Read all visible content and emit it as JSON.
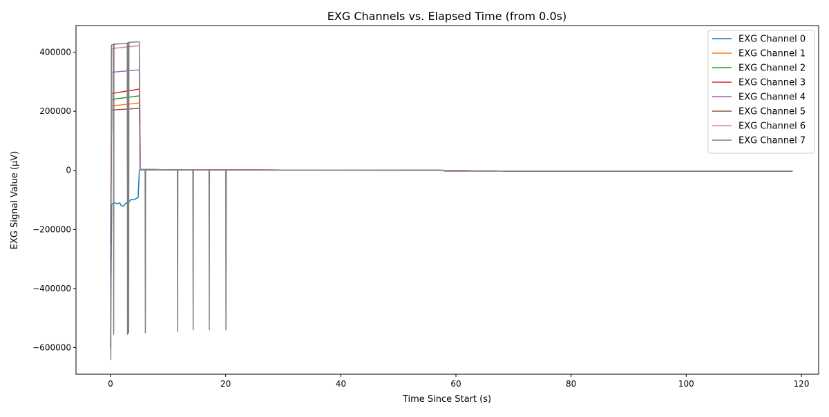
{
  "chart_data": {
    "type": "line",
    "title": "EXG Channels vs. Elapsed Time (from 0.0s)",
    "xlabel": "Time Since Start (s)",
    "ylabel": "EXG Signal Value (µV)",
    "xlim": [
      -6,
      123
    ],
    "ylim": [
      -690000,
      490000
    ],
    "xticks": [
      0,
      20,
      40,
      60,
      80,
      100,
      120
    ],
    "yticks": [
      -600000,
      -400000,
      -200000,
      0,
      200000,
      400000
    ],
    "ytick_labels": [
      "−600000",
      "−400000",
      "−200000",
      "0",
      "200000",
      "400000"
    ],
    "grid": false,
    "legend_position": "top-right",
    "series": [
      {
        "name": "EXG Channel 0",
        "color": "#1f77b4",
        "x": [
          0,
          0.2,
          0.4,
          0.8,
          1.2,
          1.6,
          1.8,
          2.2,
          2.6,
          3.0,
          3.3,
          3.6,
          4.0,
          4.4,
          4.8,
          5.0,
          5.2,
          6,
          10,
          20,
          30,
          40,
          50,
          58,
          70,
          90,
          118.5
        ],
        "y": [
          -600000,
          -115000,
          -112000,
          -110000,
          -113000,
          -110000,
          -118000,
          -122000,
          -112000,
          -108000,
          -105000,
          -98000,
          -100000,
          -96000,
          -92000,
          0,
          2000,
          1000,
          1500,
          1200,
          1000,
          800,
          500,
          0,
          -3000,
          -3000,
          -3000
        ]
      },
      {
        "name": "EXG Channel 1",
        "color": "#ff7f0e",
        "x": [
          0,
          0.2,
          5.0,
          5.2,
          10,
          20,
          30,
          40,
          50,
          58,
          70,
          90,
          118.5
        ],
        "y": [
          -200000,
          218000,
          228000,
          3000,
          2000,
          1500,
          1200,
          1000,
          800,
          0,
          -3000,
          -3000,
          -3000
        ]
      },
      {
        "name": "EXG Channel 2",
        "color": "#2ca02c",
        "x": [
          0,
          0.2,
          5.0,
          5.2,
          10,
          20,
          30,
          40,
          50,
          58,
          70,
          90,
          118.5
        ],
        "y": [
          -250000,
          240000,
          252000,
          3000,
          2000,
          1500,
          1200,
          1000,
          800,
          0,
          -3000,
          -3000,
          -3000
        ]
      },
      {
        "name": "EXG Channel 3",
        "color": "#d62728",
        "x": [
          0,
          0.2,
          5.0,
          5.2,
          10,
          20,
          30,
          40,
          50,
          58,
          70,
          90,
          118.5
        ],
        "y": [
          -300000,
          260000,
          275000,
          3000,
          2000,
          1500,
          1200,
          1000,
          800,
          0,
          -3000,
          -3000,
          -3000
        ]
      },
      {
        "name": "EXG Channel 4",
        "color": "#9467bd",
        "x": [
          0,
          0.2,
          5.0,
          5.2,
          10,
          20,
          30,
          40,
          50,
          58,
          70,
          90,
          118.5
        ],
        "y": [
          -400000,
          332000,
          340000,
          3000,
          2000,
          1500,
          1200,
          1000,
          800,
          0,
          -3000,
          -3000,
          -3000
        ]
      },
      {
        "name": "EXG Channel 5",
        "color": "#8c564b",
        "x": [
          0,
          0.2,
          5.0,
          5.2,
          10,
          20,
          30,
          40,
          50,
          58,
          70,
          90,
          118.5
        ],
        "y": [
          -350000,
          204000,
          210000,
          3000,
          2000,
          1500,
          1200,
          1000,
          800,
          0,
          -3000,
          -3000,
          -3000
        ]
      },
      {
        "name": "EXG Channel 6",
        "color": "#e377c2",
        "x": [
          0,
          0.2,
          5.0,
          5.2,
          10,
          20,
          30,
          40,
          50,
          58,
          70,
          90,
          118.5
        ],
        "y": [
          -500000,
          412000,
          422000,
          3000,
          2000,
          1500,
          1200,
          1000,
          800,
          0,
          -3000,
          -3000,
          -3000
        ]
      },
      {
        "name": "EXG Channel 7",
        "color": "#7f7f7f",
        "x": [
          0,
          0.05,
          0.15,
          0.5,
          0.55,
          0.6,
          0.65,
          2.9,
          2.95,
          3.0,
          3.05,
          3.1,
          3.15,
          3.2,
          4.9,
          5.0,
          5.1,
          6.0,
          6.05,
          6.1,
          10,
          11.6,
          11.65,
          11.7,
          14.3,
          14.35,
          14.4,
          17.1,
          17.15,
          17.2,
          20.0,
          20.05,
          20.1,
          30,
          40,
          50,
          57.9,
          58.0,
          70,
          90,
          118.5
        ],
        "y": [
          -640000,
          -640000,
          424000,
          426000,
          -555000,
          428000,
          427000,
          430000,
          -555000,
          432000,
          -550000,
          433000,
          -550000,
          433000,
          435000,
          435000,
          2000,
          2000,
          -550000,
          2000,
          1500,
          1500,
          -545000,
          1500,
          1200,
          -540000,
          1200,
          1000,
          -540000,
          1000,
          800,
          -540000,
          800,
          600,
          500,
          400,
          0,
          -3000,
          -3000,
          -3000,
          -3000
        ]
      }
    ]
  }
}
